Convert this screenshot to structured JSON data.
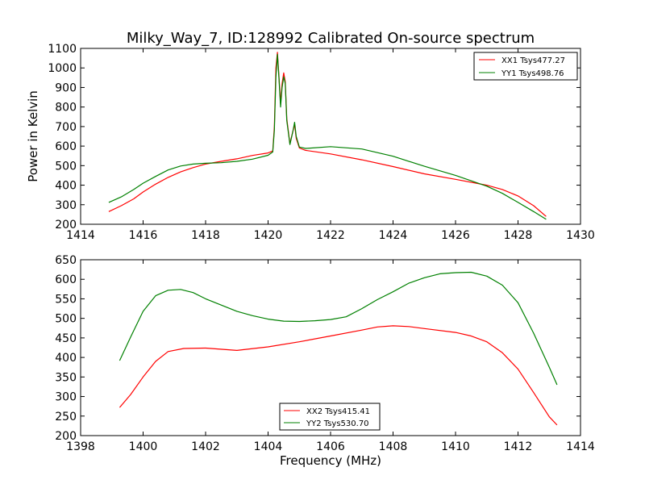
{
  "chart_data": [
    {
      "type": "line",
      "title": "Milky_Way_7, ID:128992 Calibrated On-source spectrum",
      "xlabel": "",
      "ylabel": "Power in Kelvin",
      "xlim": [
        1414,
        1430
      ],
      "ylim": [
        200,
        1100
      ],
      "xticks": [
        "1414",
        "1416",
        "1418",
        "1420",
        "1422",
        "1424",
        "1426",
        "1428",
        "1430"
      ],
      "yticks": [
        "200",
        "300",
        "400",
        "500",
        "600",
        "700",
        "800",
        "900",
        "1000",
        "1100"
      ],
      "legend_position": "upper right",
      "grid": false,
      "series": [
        {
          "name": "XX1 Tsys477.27",
          "color": "#ff0000",
          "points": [
            [
              1414.9,
              265
            ],
            [
              1415.3,
              295
            ],
            [
              1415.7,
              330
            ],
            [
              1416.0,
              365
            ],
            [
              1416.4,
              405
            ],
            [
              1416.8,
              440
            ],
            [
              1417.2,
              468
            ],
            [
              1417.6,
              490
            ],
            [
              1418.0,
              508
            ],
            [
              1418.5,
              522
            ],
            [
              1419.0,
              535
            ],
            [
              1419.5,
              552
            ],
            [
              1420.0,
              565
            ],
            [
              1420.15,
              575
            ],
            [
              1420.2,
              700
            ],
            [
              1420.25,
              1000
            ],
            [
              1420.3,
              1080
            ],
            [
              1420.35,
              950
            ],
            [
              1420.4,
              820
            ],
            [
              1420.45,
              920
            ],
            [
              1420.5,
              975
            ],
            [
              1420.55,
              930
            ],
            [
              1420.6,
              740
            ],
            [
              1420.7,
              612
            ],
            [
              1420.8,
              680
            ],
            [
              1420.85,
              710
            ],
            [
              1420.9,
              640
            ],
            [
              1421.0,
              590
            ],
            [
              1421.2,
              578
            ],
            [
              1422.0,
              560
            ],
            [
              1423.0,
              530
            ],
            [
              1424.0,
              495
            ],
            [
              1425.0,
              458
            ],
            [
              1426.0,
              430
            ],
            [
              1427.0,
              400
            ],
            [
              1427.5,
              378
            ],
            [
              1428.0,
              345
            ],
            [
              1428.5,
              295
            ],
            [
              1428.9,
              240
            ]
          ]
        },
        {
          "name": "YY1 Tsys498.76",
          "color": "#008000",
          "points": [
            [
              1414.9,
              312
            ],
            [
              1415.3,
              340
            ],
            [
              1415.7,
              378
            ],
            [
              1416.0,
              410
            ],
            [
              1416.4,
              445
            ],
            [
              1416.8,
              478
            ],
            [
              1417.2,
              498
            ],
            [
              1417.6,
              508
            ],
            [
              1418.0,
              512
            ],
            [
              1418.5,
              515
            ],
            [
              1419.0,
              522
            ],
            [
              1419.5,
              533
            ],
            [
              1420.0,
              553
            ],
            [
              1420.15,
              570
            ],
            [
              1420.2,
              680
            ],
            [
              1420.25,
              950
            ],
            [
              1420.3,
              1070
            ],
            [
              1420.35,
              940
            ],
            [
              1420.4,
              800
            ],
            [
              1420.45,
              900
            ],
            [
              1420.5,
              955
            ],
            [
              1420.55,
              920
            ],
            [
              1420.6,
              730
            ],
            [
              1420.7,
              608
            ],
            [
              1420.8,
              680
            ],
            [
              1420.85,
              722
            ],
            [
              1420.9,
              650
            ],
            [
              1421.0,
              595
            ],
            [
              1421.2,
              588
            ],
            [
              1422.0,
              597
            ],
            [
              1423.0,
              585
            ],
            [
              1424.0,
              548
            ],
            [
              1425.0,
              497
            ],
            [
              1426.0,
              450
            ],
            [
              1427.0,
              395
            ],
            [
              1427.5,
              358
            ],
            [
              1428.0,
              312
            ],
            [
              1428.5,
              265
            ],
            [
              1428.9,
              225
            ]
          ]
        }
      ]
    },
    {
      "type": "line",
      "title": "",
      "xlabel": "Frequency (MHz)",
      "ylabel": "",
      "xlim": [
        1398,
        1414
      ],
      "ylim": [
        200,
        650
      ],
      "xticks": [
        "1398",
        "1400",
        "1402",
        "1404",
        "1406",
        "1408",
        "1410",
        "1412",
        "1414"
      ],
      "yticks": [
        "200",
        "250",
        "300",
        "350",
        "400",
        "450",
        "500",
        "550",
        "600",
        "650"
      ],
      "legend_position": "lower center",
      "grid": false,
      "series": [
        {
          "name": "XX2 Tsys415.41",
          "color": "#ff0000",
          "points": [
            [
              1399.25,
              272
            ],
            [
              1399.6,
              305
            ],
            [
              1400.0,
              350
            ],
            [
              1400.4,
              390
            ],
            [
              1400.8,
              415
            ],
            [
              1401.3,
              423
            ],
            [
              1402.0,
              424
            ],
            [
              1403.0,
              418
            ],
            [
              1404.0,
              427
            ],
            [
              1405.0,
              440
            ],
            [
              1406.0,
              455
            ],
            [
              1407.0,
              470
            ],
            [
              1407.5,
              478
            ],
            [
              1408.0,
              481
            ],
            [
              1408.5,
              479
            ],
            [
              1409.0,
              474
            ],
            [
              1410.0,
              464
            ],
            [
              1410.5,
              455
            ],
            [
              1411.0,
              440
            ],
            [
              1411.5,
              412
            ],
            [
              1412.0,
              370
            ],
            [
              1412.5,
              310
            ],
            [
              1413.0,
              248
            ],
            [
              1413.25,
              227
            ]
          ]
        },
        {
          "name": "YY2 Tsys530.70",
          "color": "#008000",
          "points": [
            [
              1399.25,
              392
            ],
            [
              1399.6,
              452
            ],
            [
              1400.0,
              518
            ],
            [
              1400.4,
              558
            ],
            [
              1400.8,
              572
            ],
            [
              1401.2,
              574
            ],
            [
              1401.6,
              566
            ],
            [
              1402.0,
              550
            ],
            [
              1402.5,
              534
            ],
            [
              1403.0,
              518
            ],
            [
              1403.5,
              507
            ],
            [
              1404.0,
              498
            ],
            [
              1404.5,
              493
            ],
            [
              1405.0,
              492
            ],
            [
              1405.5,
              494
            ],
            [
              1406.0,
              497
            ],
            [
              1406.5,
              504
            ],
            [
              1407.0,
              525
            ],
            [
              1407.5,
              548
            ],
            [
              1408.0,
              568
            ],
            [
              1408.5,
              590
            ],
            [
              1409.0,
              604
            ],
            [
              1409.5,
              614
            ],
            [
              1410.0,
              617
            ],
            [
              1410.5,
              618
            ],
            [
              1411.0,
              608
            ],
            [
              1411.5,
              585
            ],
            [
              1412.0,
              540
            ],
            [
              1412.5,
              462
            ],
            [
              1413.0,
              375
            ],
            [
              1413.25,
              330
            ]
          ]
        }
      ]
    }
  ]
}
